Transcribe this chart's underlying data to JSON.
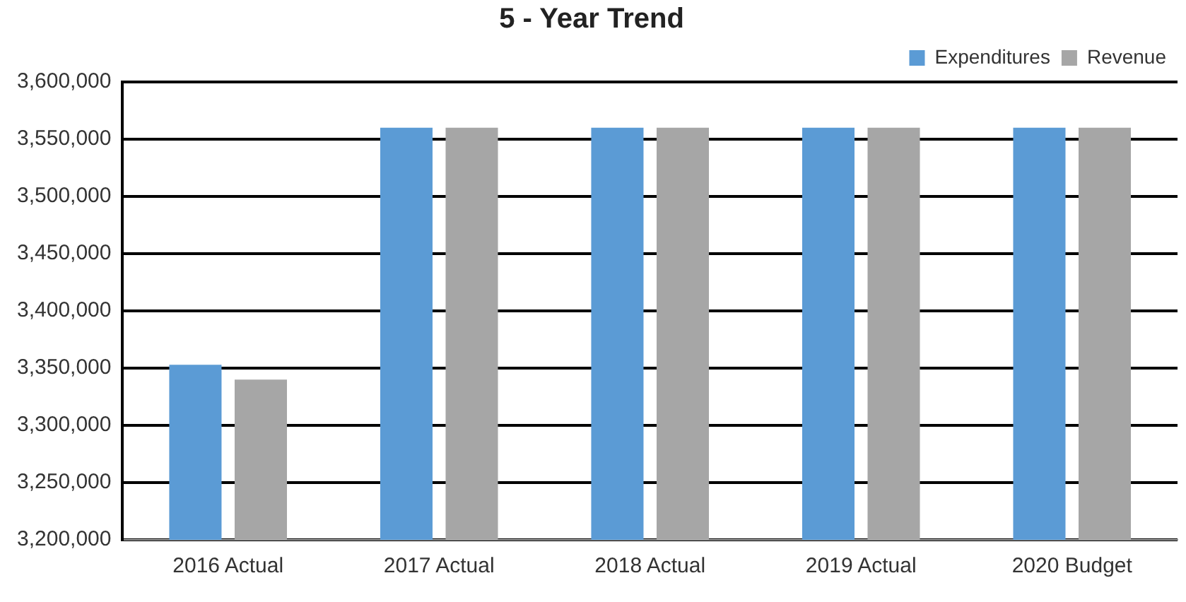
{
  "chart_data": {
    "type": "bar",
    "title": "5 - Year Trend",
    "categories": [
      "2016 Actual",
      "2017 Actual",
      "2018 Actual",
      "2019 Actual",
      "2020 Budget"
    ],
    "series": [
      {
        "name": "Expenditures",
        "color": "#5b9bd5",
        "values": [
          3353000,
          3560000,
          3560000,
          3560000,
          3560000
        ]
      },
      {
        "name": "Revenue",
        "color": "#a6a6a6",
        "values": [
          3340000,
          3560000,
          3560000,
          3560000,
          3560000
        ]
      }
    ],
    "ylim": [
      3200000,
      3600000
    ],
    "yticks": [
      {
        "value": 3200000,
        "label": "3,200,000"
      },
      {
        "value": 3250000,
        "label": "3,250,000"
      },
      {
        "value": 3300000,
        "label": "3,300,000"
      },
      {
        "value": 3350000,
        "label": "3,350,000"
      },
      {
        "value": 3400000,
        "label": "3,400,000"
      },
      {
        "value": 3450000,
        "label": "3,450,000"
      },
      {
        "value": 3500000,
        "label": "3,500,000"
      },
      {
        "value": 3550000,
        "label": "3,550,000"
      },
      {
        "value": 3600000,
        "label": "3,600,000"
      }
    ],
    "grid": "y",
    "legend": "top right"
  }
}
